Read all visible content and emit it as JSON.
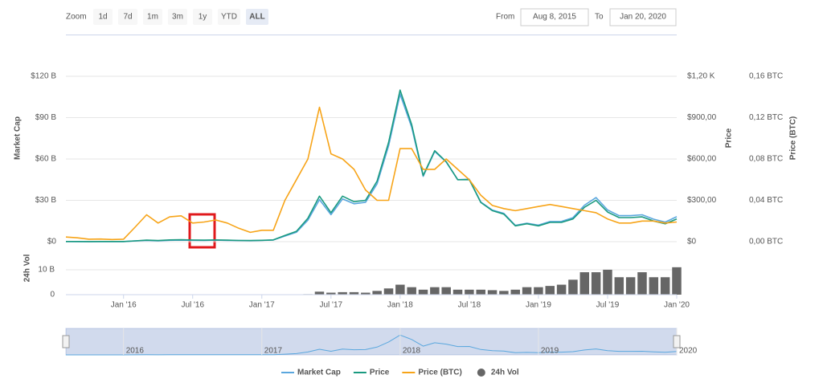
{
  "toolbar": {
    "zoom_label": "Zoom",
    "buttons": [
      "1d",
      "7d",
      "1m",
      "3m",
      "1y",
      "YTD",
      "ALL"
    ],
    "selected": "ALL",
    "from_label": "From",
    "from": "Aug 8, 2015",
    "to_label": "To",
    "to": "Jan 20, 2020"
  },
  "navigator": {
    "ticks": [
      {
        "value": "2016-01",
        "label": "2016"
      },
      {
        "value": "2017-01",
        "label": "2017"
      },
      {
        "value": "2018-01",
        "label": "2018"
      },
      {
        "value": "2019-01",
        "label": "2019"
      },
      {
        "value": "2020-01",
        "label": "2020"
      }
    ]
  },
  "chart_data": [
    {
      "type": "line",
      "x": [
        "2015-08",
        "2015-09",
        "2015-10",
        "2015-11",
        "2015-12",
        "2016-01",
        "2016-02",
        "2016-03",
        "2016-04",
        "2016-05",
        "2016-06",
        "2016-07",
        "2016-08",
        "2016-09",
        "2016-10",
        "2016-11",
        "2016-12",
        "2017-01",
        "2017-02",
        "2017-03",
        "2017-04",
        "2017-05",
        "2017-06",
        "2017-07",
        "2017-08",
        "2017-09",
        "2017-10",
        "2017-11",
        "2017-12",
        "2018-01",
        "2018-02",
        "2018-03",
        "2018-04",
        "2018-05",
        "2018-06",
        "2018-07",
        "2018-08",
        "2018-09",
        "2018-10",
        "2018-11",
        "2018-12",
        "2019-01",
        "2019-02",
        "2019-03",
        "2019-04",
        "2019-05",
        "2019-06",
        "2019-07",
        "2019-08",
        "2019-09",
        "2019-10",
        "2019-11",
        "2019-12",
        "2020-01"
      ],
      "xlim": [
        "2015-08",
        "2020-01"
      ],
      "y_label": "Market Cap",
      "y2_label": "Price",
      "y3_label": "Price (BTC)",
      "ylim": [
        0,
        150
      ],
      "yticks": [
        {
          "value": 0,
          "label": "$0"
        },
        {
          "value": 30,
          "label": "$30 B"
        },
        {
          "value": 60,
          "label": "$60 B"
        },
        {
          "value": 90,
          "label": "$90 B"
        },
        {
          "value": 120,
          "label": "$120 B"
        }
      ],
      "y2lim": [
        0,
        1500
      ],
      "y2ticks": [
        {
          "value": 0,
          "label": "$0"
        },
        {
          "value": 300,
          "label": "$300,00"
        },
        {
          "value": 600,
          "label": "$600,00"
        },
        {
          "value": 900,
          "label": "$900,00"
        },
        {
          "value": 1200,
          "label": "$1,20 K"
        }
      ],
      "y3lim": [
        0,
        0.2
      ],
      "y3ticks": [
        {
          "value": 0,
          "label": "0,00 BTC"
        },
        {
          "value": 0.04,
          "label": "0,04 BTC"
        },
        {
          "value": 0.08,
          "label": "0,08 BTC"
        },
        {
          "value": 0.12,
          "label": "0,12 BTC"
        },
        {
          "value": 0.16,
          "label": "0,16 BTC"
        }
      ],
      "grid": true,
      "series": [
        {
          "name": "Market Cap",
          "color": "#5aa7de",
          "axis": "y",
          "values": [
            0.1,
            0.07,
            0.05,
            0.07,
            0.07,
            0.08,
            0.5,
            0.9,
            0.6,
            1.0,
            1.1,
            1.0,
            0.9,
            1.1,
            0.9,
            0.8,
            0.7,
            0.9,
            1.2,
            4.1,
            6.8,
            15.6,
            30.5,
            19.6,
            31,
            27.5,
            28.6,
            42,
            69.5,
            107,
            83,
            47.4,
            65.4,
            57.8,
            45,
            45.3,
            28.8,
            22.9,
            20.5,
            11.8,
            13.4,
            12,
            14.6,
            14.7,
            17.4,
            26.5,
            32,
            23,
            18.9,
            18.9,
            19.5,
            16.3,
            14.2,
            18.1
          ]
        },
        {
          "name": "Price",
          "color": "#1a9a80",
          "axis": "y2",
          "values": [
            1.2,
            0.9,
            0.7,
            0.9,
            0.9,
            1,
            6,
            11,
            8,
            13,
            14,
            12,
            11,
            13,
            11,
            9,
            8,
            10,
            13,
            45,
            75,
            170,
            330,
            210,
            330,
            290,
            300,
            440,
            720,
            1100,
            850,
            480,
            660,
            580,
            450,
            450,
            285,
            225,
            200,
            115,
            130,
            115,
            140,
            140,
            165,
            250,
            300,
            215,
            175,
            175,
            180,
            150,
            130,
            165
          ]
        },
        {
          "name": "Price (BTC)",
          "color": "#f7a418",
          "axis": "y3",
          "values": [
            0.0045,
            0.0037,
            0.0024,
            0.0026,
            0.0021,
            0.0024,
            0.014,
            0.026,
            0.018,
            0.024,
            0.025,
            0.018,
            0.019,
            0.021,
            0.018,
            0.013,
            0.009,
            0.011,
            0.011,
            0.04,
            0.06,
            0.08,
            0.13,
            0.085,
            0.08,
            0.07,
            0.05,
            0.04,
            0.04,
            0.09,
            0.09,
            0.07,
            0.07,
            0.08,
            0.07,
            0.06,
            0.045,
            0.035,
            0.032,
            0.03,
            0.032,
            0.034,
            0.036,
            0.034,
            0.032,
            0.03,
            0.028,
            0.022,
            0.018,
            0.018,
            0.02,
            0.02,
            0.018,
            0.019
          ]
        }
      ]
    },
    {
      "type": "bar",
      "x": [
        "2015-08",
        "2015-09",
        "2015-10",
        "2015-11",
        "2015-12",
        "2016-01",
        "2016-02",
        "2016-03",
        "2016-04",
        "2016-05",
        "2016-06",
        "2016-07",
        "2016-08",
        "2016-09",
        "2016-10",
        "2016-11",
        "2016-12",
        "2017-01",
        "2017-02",
        "2017-03",
        "2017-04",
        "2017-05",
        "2017-06",
        "2017-07",
        "2017-08",
        "2017-09",
        "2017-10",
        "2017-11",
        "2017-12",
        "2018-01",
        "2018-02",
        "2018-03",
        "2018-04",
        "2018-05",
        "2018-06",
        "2018-07",
        "2018-08",
        "2018-09",
        "2018-10",
        "2018-11",
        "2018-12",
        "2019-01",
        "2019-02",
        "2019-03",
        "2019-04",
        "2019-05",
        "2019-06",
        "2019-07",
        "2019-08",
        "2019-09",
        "2019-10",
        "2019-11",
        "2019-12",
        "2020-01"
      ],
      "xlim": [
        "2015-08",
        "2020-01"
      ],
      "xticks": [
        {
          "value": "2016-01",
          "label": "Jan '16"
        },
        {
          "value": "2016-07",
          "label": "Jul '16"
        },
        {
          "value": "2017-01",
          "label": "Jan '17"
        },
        {
          "value": "2017-07",
          "label": "Jul '17"
        },
        {
          "value": "2018-01",
          "label": "Jan '18"
        },
        {
          "value": "2018-07",
          "label": "Jul '18"
        },
        {
          "value": "2019-01",
          "label": "Jan '19"
        },
        {
          "value": "2019-07",
          "label": "Jul '19"
        },
        {
          "value": "2020-01",
          "label": "Jan '20"
        }
      ],
      "y_label": "24h Vol",
      "ylim": [
        0,
        19
      ],
      "yticks": [
        0,
        {
          "value": 10,
          "label": "10 B"
        }
      ],
      "grid": true,
      "series": [
        {
          "name": "24h Vol",
          "color": "#666666",
          "values": [
            0,
            0,
            0,
            0,
            0,
            0,
            0,
            0,
            0,
            0,
            0,
            0,
            0,
            0,
            0,
            0,
            0,
            0,
            0,
            0,
            0,
            0.2,
            1.2,
            0.8,
            1,
            1,
            0.8,
            1.5,
            2.5,
            4,
            3,
            2,
            3,
            3,
            2,
            2,
            2,
            1.8,
            1.5,
            2,
            3,
            3,
            3.5,
            4,
            6,
            9,
            9,
            10,
            7,
            7,
            9,
            7,
            7,
            11
          ]
        }
      ]
    }
  ]
}
